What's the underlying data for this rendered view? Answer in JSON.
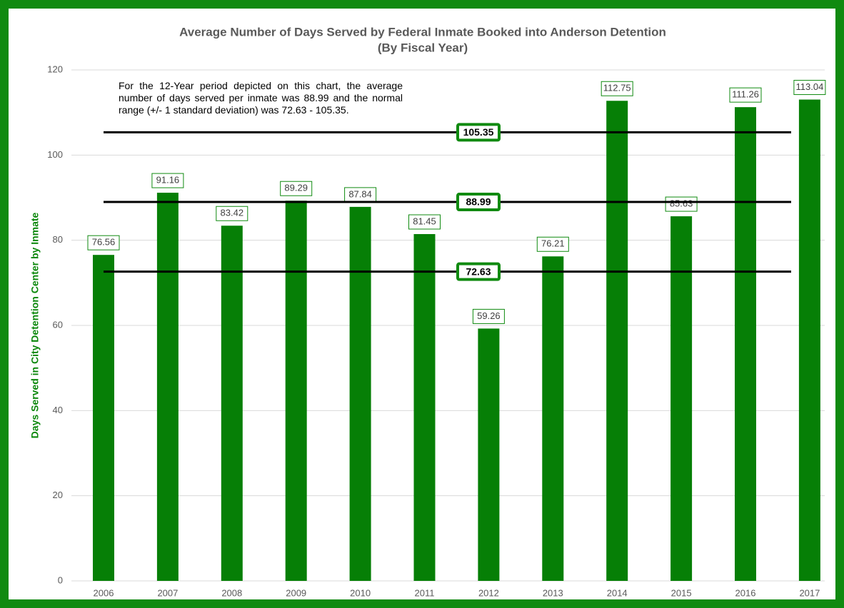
{
  "chart_data": {
    "type": "bar",
    "title": "Average Number of Days Served by Federal Inmate Booked into Anderson Detention",
    "subtitle": "(By Fiscal Year)",
    "y_label": "Days Served in City Detention Center by Inmate",
    "annotation": "For the 12-Year period depicted on this chart, the average number of days served per inmate was 88.99 and the normal range (+/- 1 standard deviation) was 72.63 - 105.35.",
    "categories": [
      "2006",
      "2007",
      "2008",
      "2009",
      "2010",
      "2011",
      "2012",
      "2013",
      "2014",
      "2015",
      "2016",
      "2017"
    ],
    "values": [
      76.56,
      91.16,
      83.42,
      89.29,
      87.84,
      81.45,
      59.26,
      76.21,
      112.75,
      85.63,
      111.26,
      113.04
    ],
    "color": "#067f06",
    "reference_lines": [
      105.35,
      88.99,
      72.63
    ],
    "ylim": [
      0,
      120
    ],
    "yticks": [
      0,
      20,
      40,
      60,
      80,
      100,
      120
    ],
    "grid": true
  }
}
